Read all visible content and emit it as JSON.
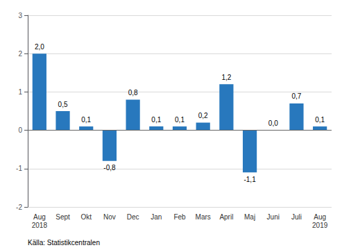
{
  "chart_data": {
    "type": "bar",
    "categories": [
      "Aug\n2018",
      "Sept",
      "Okt",
      "Nov",
      "Dec",
      "Jan",
      "Feb",
      "Mars",
      "April",
      "Maj",
      "Juni",
      "Juli",
      "Aug\n2019"
    ],
    "values": [
      2.0,
      0.5,
      0.1,
      -0.8,
      0.8,
      0.1,
      0.1,
      0.2,
      1.2,
      -1.1,
      0.0,
      0.7,
      0.1
    ],
    "value_labels": [
      "2,0",
      "0,5",
      "0,1",
      "-0,8",
      "0,8",
      "0,1",
      "0,1",
      "0,2",
      "1,2",
      "-1,1",
      "0,0",
      "0,7",
      "0,1"
    ],
    "data_labels": true,
    "color": "#2878bd",
    "ylim": [
      -2,
      3
    ],
    "yticks": [
      -2,
      -1,
      0,
      1,
      2,
      3
    ],
    "grid": true,
    "annotation": "Källa: Statistikcentralen"
  }
}
